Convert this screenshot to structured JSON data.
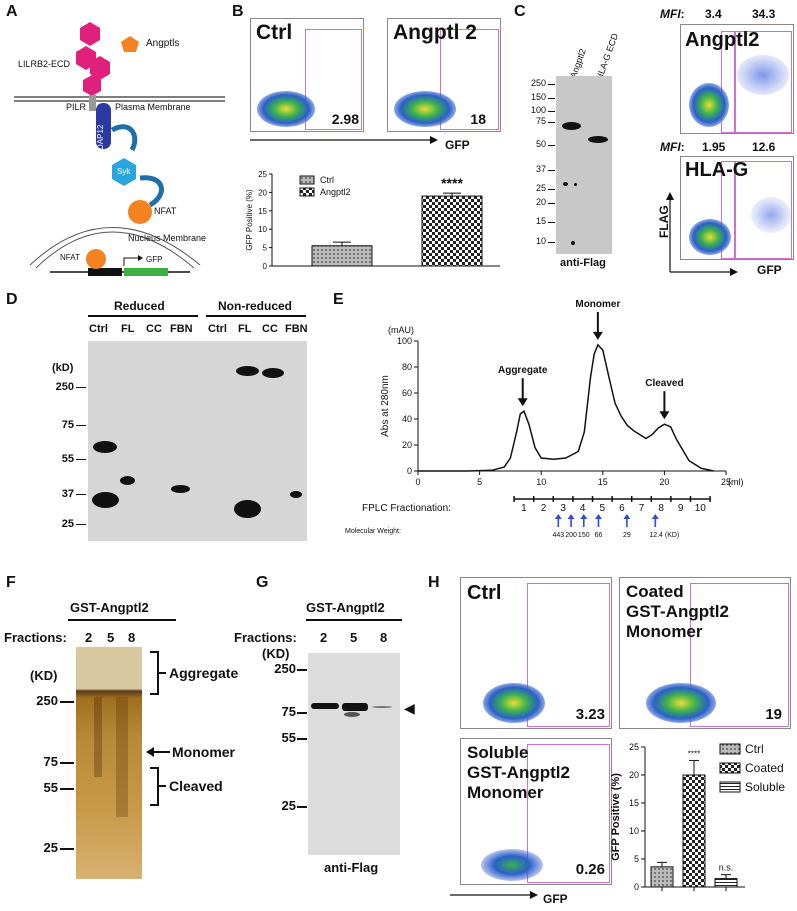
{
  "panel_letters": [
    "A",
    "B",
    "C",
    "D",
    "E",
    "F",
    "G",
    "H"
  ],
  "A": {
    "legend_angptls": "Angptls",
    "receptor": "LILRB2-ECD",
    "pilr": "PILR",
    "plasma_membrane": "Plasma Membrane",
    "dap12": "DAP12",
    "syk": "Syk",
    "nfat1": "NFAT",
    "nucleus_membrane": "Nucleus Membrane",
    "nfat2": "NFAT",
    "gfp": "GFP"
  },
  "B": {
    "flow_ctrl_title": "Ctrl",
    "flow_ctrl_value": "2.98",
    "flow_angptl2_title": "Angptl 2",
    "flow_angptl2_value": "18",
    "x_axis": "GFP",
    "chart_data": {
      "type": "bar",
      "categories": [
        "Ctrl",
        "Angptl2"
      ],
      "values": [
        5.5,
        19.0
      ],
      "errors": [
        1.0,
        0.8
      ],
      "ylabel": "GFP Positive (%)",
      "ylim": [
        0,
        25
      ],
      "yticks": [
        "0",
        "5",
        "10",
        "15",
        "20",
        "25"
      ],
      "legend": [
        "Ctrl",
        "Angptl2"
      ],
      "significance": "****"
    }
  },
  "C": {
    "lane1": "Angptl2",
    "lane2": "HLA-G ECD",
    "markers": [
      "250",
      "150",
      "100",
      "75",
      "50",
      "37",
      "25",
      "20",
      "15",
      "10"
    ],
    "blot_label": "anti-Flag",
    "mfi_label": "MFI",
    "mfi_angptl2_a": "3.4",
    "mfi_angptl2_b": "34.3",
    "flow1_title": "Angptl2",
    "mfi_hlag_a": "1.95",
    "mfi_hlag_b": "12.6",
    "flow2_title": "HLA-G",
    "y_axis": "FLAG",
    "x_axis": "GFP"
  },
  "D": {
    "group1": "Reduced",
    "group2": "Non-reduced",
    "lanes": [
      "Ctrl",
      "FL",
      "CC",
      "FBN",
      "Ctrl",
      "FL",
      "CC",
      "FBN"
    ],
    "unit": "(kD)",
    "markers": [
      "250",
      "75",
      "55",
      "37",
      "25"
    ]
  },
  "E": {
    "chart_data": {
      "type": "line",
      "ylabel": "Abs at 280nm",
      "yunit": "(mAU)",
      "xunit": "(ml)",
      "xlim": [
        0,
        25
      ],
      "ylim": [
        0,
        100
      ],
      "xticks": [
        "0",
        "5",
        "10",
        "15",
        "20",
        "25"
      ],
      "yticks": [
        "0",
        "20",
        "40",
        "60",
        "80",
        "100"
      ],
      "x": [
        0,
        2,
        4,
        6,
        7,
        7.5,
        8,
        8.3,
        8.6,
        9,
        9.5,
        10,
        11,
        12,
        13,
        13.5,
        14,
        14.3,
        14.6,
        15,
        15.5,
        16,
        16.5,
        17,
        17.5,
        18,
        18.5,
        19,
        19.5,
        20,
        20.5,
        21,
        22,
        23,
        24
      ],
      "y": [
        0,
        0,
        0,
        0.5,
        3,
        10,
        30,
        44,
        46,
        36,
        18,
        10,
        9,
        10,
        15,
        30,
        72,
        90,
        97,
        93,
        72,
        52,
        42,
        35,
        31,
        28,
        25,
        28,
        33,
        36,
        34,
        24,
        8,
        2,
        0
      ],
      "annotations": [
        "Aggregate",
        "Monomer",
        "Cleaved"
      ]
    },
    "fractionation_label": "FPLC Fractionation:",
    "fractions": [
      "1",
      "2",
      "3",
      "4",
      "5",
      "6",
      "7",
      "8",
      "9",
      "10"
    ],
    "mw_label": "Molecular Weight:",
    "mw_values": [
      "443",
      "200",
      "150",
      "66",
      "29",
      "12.4 (KD)"
    ]
  },
  "F": {
    "title": "GST-Angptl2",
    "fractions_label": "Fractions:",
    "fractions": [
      "2",
      "5",
      "8"
    ],
    "unit": "(KD)",
    "markers": [
      "250",
      "75",
      "55",
      "25"
    ],
    "aggregate": "Aggregate",
    "monomer": "Monomer",
    "cleaved": "Cleaved"
  },
  "G": {
    "title": "GST-Angptl2",
    "fractions_label": "Fractions:",
    "fractions": [
      "2",
      "5",
      "8"
    ],
    "unit": "(KD)",
    "markers": [
      "250",
      "75",
      "55",
      "25"
    ],
    "blot_label": "anti-Flag"
  },
  "H": {
    "flow1_title": "Ctrl",
    "flow1_value": "3.23",
    "flow2_title_l1": "Coated",
    "flow2_title_l2": "GST-Angptl2",
    "flow2_title_l3": "Monomer",
    "flow2_value": "19",
    "flow3_title_l1": "Soluble",
    "flow3_title_l2": "GST-Angptl2",
    "flow3_title_l3": "Monomer",
    "flow3_value": "0.26",
    "x_axis": "GFP",
    "chart_data": {
      "type": "bar",
      "categories": [
        "Ctrl",
        "Coated",
        "Soluble"
      ],
      "values": [
        3.6,
        20.0,
        1.5
      ],
      "errors": [
        0.8,
        2.6,
        0.7
      ],
      "ylabel": "GFP Positive (%)",
      "ylim": [
        0,
        25
      ],
      "yticks": [
        "0",
        "5",
        "10",
        "15",
        "20",
        "25"
      ],
      "legend": [
        "Ctrl",
        "Coated",
        "Soluble"
      ],
      "significance": [
        "",
        "****",
        "n.s."
      ]
    }
  }
}
